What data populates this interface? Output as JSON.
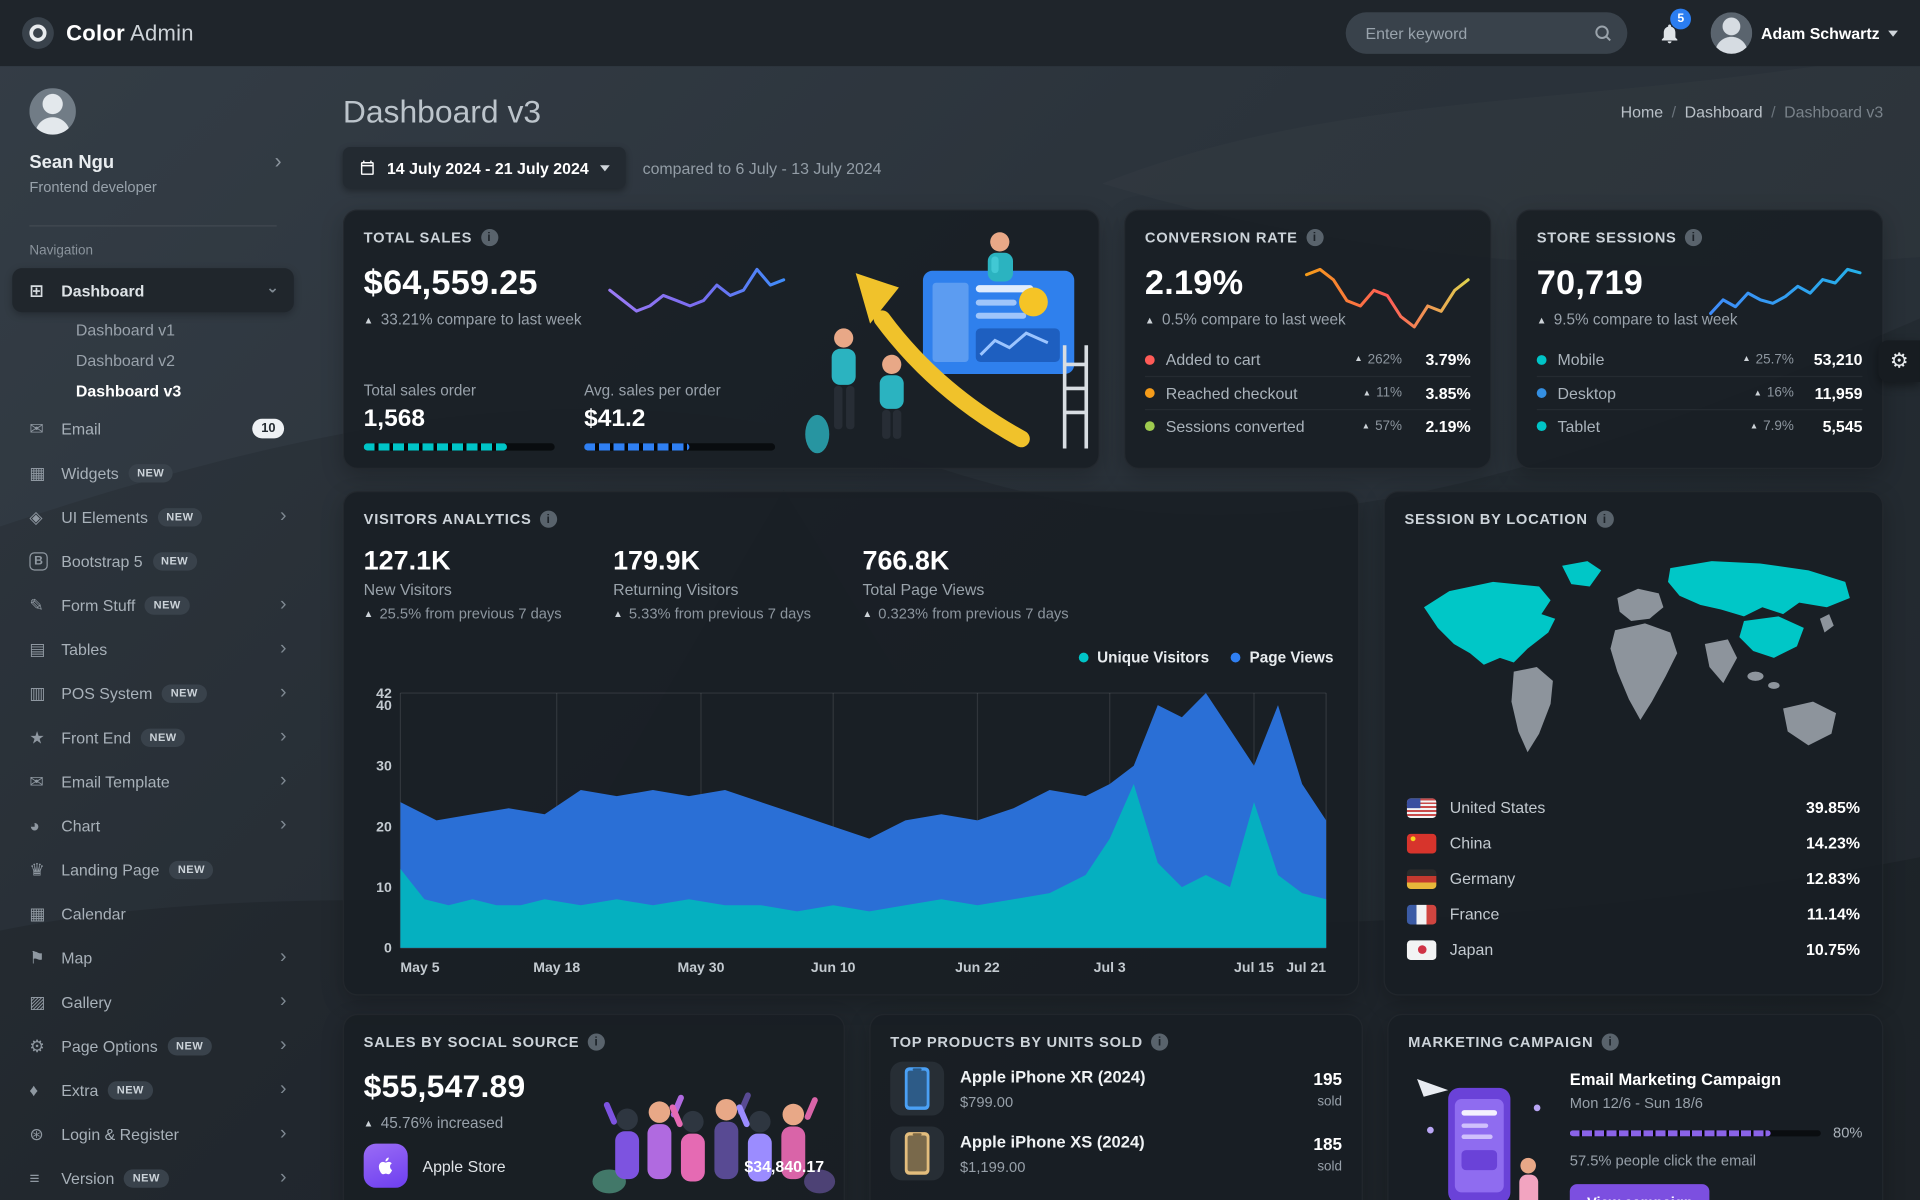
{
  "colors": {
    "teal": "#00c4c7",
    "blue": "#2f7ff2",
    "chart_blue": "#2a6fd6",
    "chart_teal": "#00b9bd",
    "purple": "#7c4fe0",
    "red": "#ff5b57",
    "orange": "#f59c1a",
    "lime": "#9fcb4f",
    "yellow": "#f5c426",
    "badge_blue": "#2b7df0"
  },
  "header": {
    "brand_bold": "Color",
    "brand_light": "Admin",
    "search_placeholder": "Enter keyword",
    "notification_count": "5",
    "user_name": "Adam Schwartz"
  },
  "sidebar": {
    "profile_name": "Sean Ngu",
    "profile_role": "Frontend developer",
    "section_label": "Navigation",
    "items": [
      {
        "label": "Dashboard",
        "icon": "dashboard-icon",
        "glyph": "⊞",
        "active": true,
        "chevron": "down"
      },
      {
        "label": "Dashboard v1",
        "child": true
      },
      {
        "label": "Dashboard v2",
        "child": true
      },
      {
        "label": "Dashboard v3",
        "child": true,
        "active_child": true
      },
      {
        "label": "Email",
        "icon": "email-icon",
        "glyph": "✉",
        "badge": "10"
      },
      {
        "label": "Widgets",
        "icon": "widgets-icon",
        "glyph": "▦",
        "new": true
      },
      {
        "label": "UI Elements",
        "icon": "ui-elements-icon",
        "glyph": "◈",
        "new": true,
        "chevron": "right"
      },
      {
        "label": "Bootstrap 5",
        "icon": "bootstrap-icon",
        "glyph": "B",
        "boxed": true,
        "new": true
      },
      {
        "label": "Form Stuff",
        "icon": "form-stuff-icon",
        "glyph": "✎",
        "new": true,
        "chevron": "right"
      },
      {
        "label": "Tables",
        "icon": "tables-icon",
        "glyph": "▤",
        "chevron": "right"
      },
      {
        "label": "POS System",
        "icon": "pos-system-icon",
        "glyph": "▥",
        "new": true,
        "chevron": "right"
      },
      {
        "label": "Front End",
        "icon": "front-end-icon",
        "glyph": "★",
        "new": true,
        "chevron": "right"
      },
      {
        "label": "Email Template",
        "icon": "email-template-icon",
        "glyph": "✉",
        "chevron": "right"
      },
      {
        "label": "Chart",
        "icon": "chart-icon",
        "glyph": "◕",
        "chevron": "right"
      },
      {
        "label": "Landing Page",
        "icon": "landing-page-icon",
        "glyph": "♛",
        "new": true
      },
      {
        "label": "Calendar",
        "icon": "calendar-icon",
        "glyph": "▦"
      },
      {
        "label": "Map",
        "icon": "map-icon",
        "glyph": "⚑",
        "chevron": "right"
      },
      {
        "label": "Gallery",
        "icon": "gallery-icon",
        "glyph": "▨",
        "chevron": "right"
      },
      {
        "label": "Page Options",
        "icon": "page-options-icon",
        "glyph": "⚙",
        "new": true,
        "chevron": "right"
      },
      {
        "label": "Extra",
        "icon": "extra-icon",
        "glyph": "♦",
        "new": true,
        "chevron": "right"
      },
      {
        "label": "Login & Register",
        "icon": "login-register-icon",
        "glyph": "⊛",
        "chevron": "right"
      },
      {
        "label": "Version",
        "icon": "version-icon",
        "glyph": "≡",
        "new": true,
        "chevron": "right"
      }
    ]
  },
  "page": {
    "title": "Dashboard v3",
    "breadcrumb": [
      "Home",
      "Dashboard",
      "Dashboard v3"
    ],
    "date_range": "14 July 2024 - 21 July 2024",
    "compare_text": "compared to 6 July - 13 July 2024"
  },
  "total_sales": {
    "title": "TOTAL SALES",
    "value": "$64,559.25",
    "change": "33.21% compare to last week",
    "stats": [
      {
        "label": "Total sales order",
        "value": "1,568",
        "percent": 75,
        "color": "teal"
      },
      {
        "label": "Avg. sales per order",
        "value": "$41.2",
        "percent": 55,
        "color": "blue"
      }
    ]
  },
  "conversion_rate": {
    "title": "CONVERSION RATE",
    "value": "2.19%",
    "change": "0.5% compare to last week",
    "rows": [
      {
        "label": "Added to cart",
        "change": "262%",
        "value": "3.79%",
        "color": "#ff5b57"
      },
      {
        "label": "Reached checkout",
        "change": "11%",
        "value": "3.85%",
        "color": "#f59c1a"
      },
      {
        "label": "Sessions converted",
        "change": "57%",
        "value": "2.19%",
        "color": "#9fcb4f"
      }
    ]
  },
  "store_sessions": {
    "title": "STORE SESSIONS",
    "value": "70,719",
    "change": "9.5% compare to last week",
    "rows": [
      {
        "label": "Mobile",
        "change": "25.7%",
        "value": "53,210",
        "color": "#00c4c7"
      },
      {
        "label": "Desktop",
        "change": "16%",
        "value": "11,959",
        "color": "#348fe2"
      },
      {
        "label": "Tablet",
        "change": "7.9%",
        "value": "5,545",
        "color": "#00c4c7"
      }
    ]
  },
  "visitors_analytics": {
    "title": "VISITORS ANALYTICS",
    "stats": [
      {
        "value": "127.1K",
        "label": "New Visitors",
        "change": "25.5% from previous 7 days"
      },
      {
        "value": "179.9K",
        "label": "Returning Visitors",
        "change": "5.33% from previous 7 days"
      },
      {
        "value": "766.8K",
        "label": "Total Page Views",
        "change": "0.323% from previous 7 days"
      }
    ]
  },
  "session_by_location": {
    "title": "SESSION BY LOCATION",
    "countries": [
      {
        "name": "United States",
        "percent": "39.85%",
        "flag": "us"
      },
      {
        "name": "China",
        "percent": "14.23%",
        "flag": "cn"
      },
      {
        "name": "Germany",
        "percent": "12.83%",
        "flag": "de"
      },
      {
        "name": "France",
        "percent": "11.14%",
        "flag": "fr"
      },
      {
        "name": "Japan",
        "percent": "10.75%",
        "flag": "jp"
      }
    ]
  },
  "sales_by_social": {
    "title": "SALES BY SOCIAL SOURCE",
    "value": "$55,547.89",
    "change": "45.76% increased",
    "rows": [
      {
        "label": "Apple Store",
        "value": "$34,840.17"
      }
    ]
  },
  "top_products": {
    "title": "TOP PRODUCTS BY UNITS SOLD",
    "rows": [
      {
        "name": "Apple iPhone XR (2024)",
        "price": "$799.00",
        "units": "195",
        "units_label": "sold",
        "thumb": "#4aa0f5"
      },
      {
        "name": "Apple iPhone XS (2024)",
        "price": "$1,199.00",
        "units": "185",
        "units_label": "sold",
        "thumb": "#e3bd7d"
      }
    ]
  },
  "marketing_campaign": {
    "title": "MARKETING CAMPAIGN",
    "name": "Email Marketing Campaign",
    "dates": "Mon 12/6 - Sun 18/6",
    "progress_percent": 80,
    "progress_label": "80%",
    "note": "57.5% people click the email",
    "button": "View campaign"
  },
  "chart_data": [
    {
      "id": "visitors-analytics",
      "type": "area",
      "title": "Visitors Analytics",
      "x_range": [
        0,
        77
      ],
      "y_range": [
        0,
        42
      ],
      "y_ticks": [
        0,
        10,
        20,
        30,
        40,
        42
      ],
      "x_ticks": [
        {
          "x": 0,
          "label": "May 5"
        },
        {
          "x": 13,
          "label": "May 18"
        },
        {
          "x": 25,
          "label": "May 30"
        },
        {
          "x": 36,
          "label": "Jun 10"
        },
        {
          "x": 48,
          "label": "Jun 22"
        },
        {
          "x": 59,
          "label": "Jul 3"
        },
        {
          "x": 71,
          "label": "Jul 15"
        },
        {
          "x": 77,
          "label": "Jul 21"
        }
      ],
      "legend": [
        {
          "label": "Unique Visitors",
          "color": "#00c4c7"
        },
        {
          "label": "Page Views",
          "color": "#2f7ff2"
        }
      ],
      "grid": "vertical",
      "series": [
        {
          "name": "Page Views",
          "color": "#2a6fd6",
          "opacity": 1,
          "points": [
            [
              0,
              24
            ],
            [
              3,
              21
            ],
            [
              6,
              22
            ],
            [
              9,
              23
            ],
            [
              12,
              22
            ],
            [
              15,
              26
            ],
            [
              18,
              25
            ],
            [
              21,
              26
            ],
            [
              24,
              25
            ],
            [
              27,
              26
            ],
            [
              30,
              24
            ],
            [
              33,
              22
            ],
            [
              36,
              20
            ],
            [
              39,
              18
            ],
            [
              42,
              21
            ],
            [
              45,
              22
            ],
            [
              48,
              21
            ],
            [
              51,
              23
            ],
            [
              54,
              26
            ],
            [
              57,
              25
            ],
            [
              59,
              27
            ],
            [
              61,
              30
            ],
            [
              63,
              40
            ],
            [
              65,
              38
            ],
            [
              67,
              42
            ],
            [
              69,
              36
            ],
            [
              71,
              30
            ],
            [
              73,
              40
            ],
            [
              75,
              27
            ],
            [
              77,
              21
            ]
          ]
        },
        {
          "name": "Unique Visitors",
          "color": "#00b9bd",
          "opacity": 0.88,
          "points": [
            [
              0,
              13
            ],
            [
              2,
              8
            ],
            [
              4,
              7
            ],
            [
              6,
              8
            ],
            [
              8,
              7
            ],
            [
              10,
              7
            ],
            [
              12,
              8
            ],
            [
              15,
              7
            ],
            [
              18,
              8
            ],
            [
              21,
              7
            ],
            [
              24,
              8
            ],
            [
              27,
              7
            ],
            [
              30,
              7
            ],
            [
              33,
              6
            ],
            [
              36,
              7
            ],
            [
              39,
              6
            ],
            [
              42,
              7
            ],
            [
              45,
              8
            ],
            [
              48,
              7
            ],
            [
              51,
              8
            ],
            [
              54,
              9
            ],
            [
              57,
              12
            ],
            [
              59,
              18
            ],
            [
              61,
              27
            ],
            [
              63,
              14
            ],
            [
              65,
              10
            ],
            [
              67,
              12
            ],
            [
              69,
              10
            ],
            [
              71,
              24
            ],
            [
              73,
              12
            ],
            [
              75,
              9
            ],
            [
              77,
              8
            ]
          ]
        }
      ]
    },
    {
      "id": "total-sales-spark",
      "type": "line",
      "values": [
        10,
        9,
        8,
        8.5,
        9.5,
        9,
        8.5,
        9,
        10.5,
        9.5,
        10,
        12,
        10.5,
        11
      ],
      "colors": [
        "#9b7bf5",
        "#7a6cf0",
        "#3f8cfa"
      ]
    },
    {
      "id": "conversion-spark",
      "type": "line",
      "values": [
        13,
        14,
        12,
        8,
        7,
        10,
        9,
        5,
        3,
        7,
        6,
        10,
        12
      ],
      "colors": [
        "#f59c1a",
        "#ff5b57",
        "#dfd24e"
      ]
    },
    {
      "id": "sessions-spark",
      "type": "line",
      "values": [
        6,
        8,
        7,
        9,
        8,
        7.5,
        8.5,
        10,
        9,
        11,
        10.5,
        12.5,
        12
      ],
      "colors": [
        "#3f8cfa",
        "#25b0e8"
      ]
    }
  ]
}
